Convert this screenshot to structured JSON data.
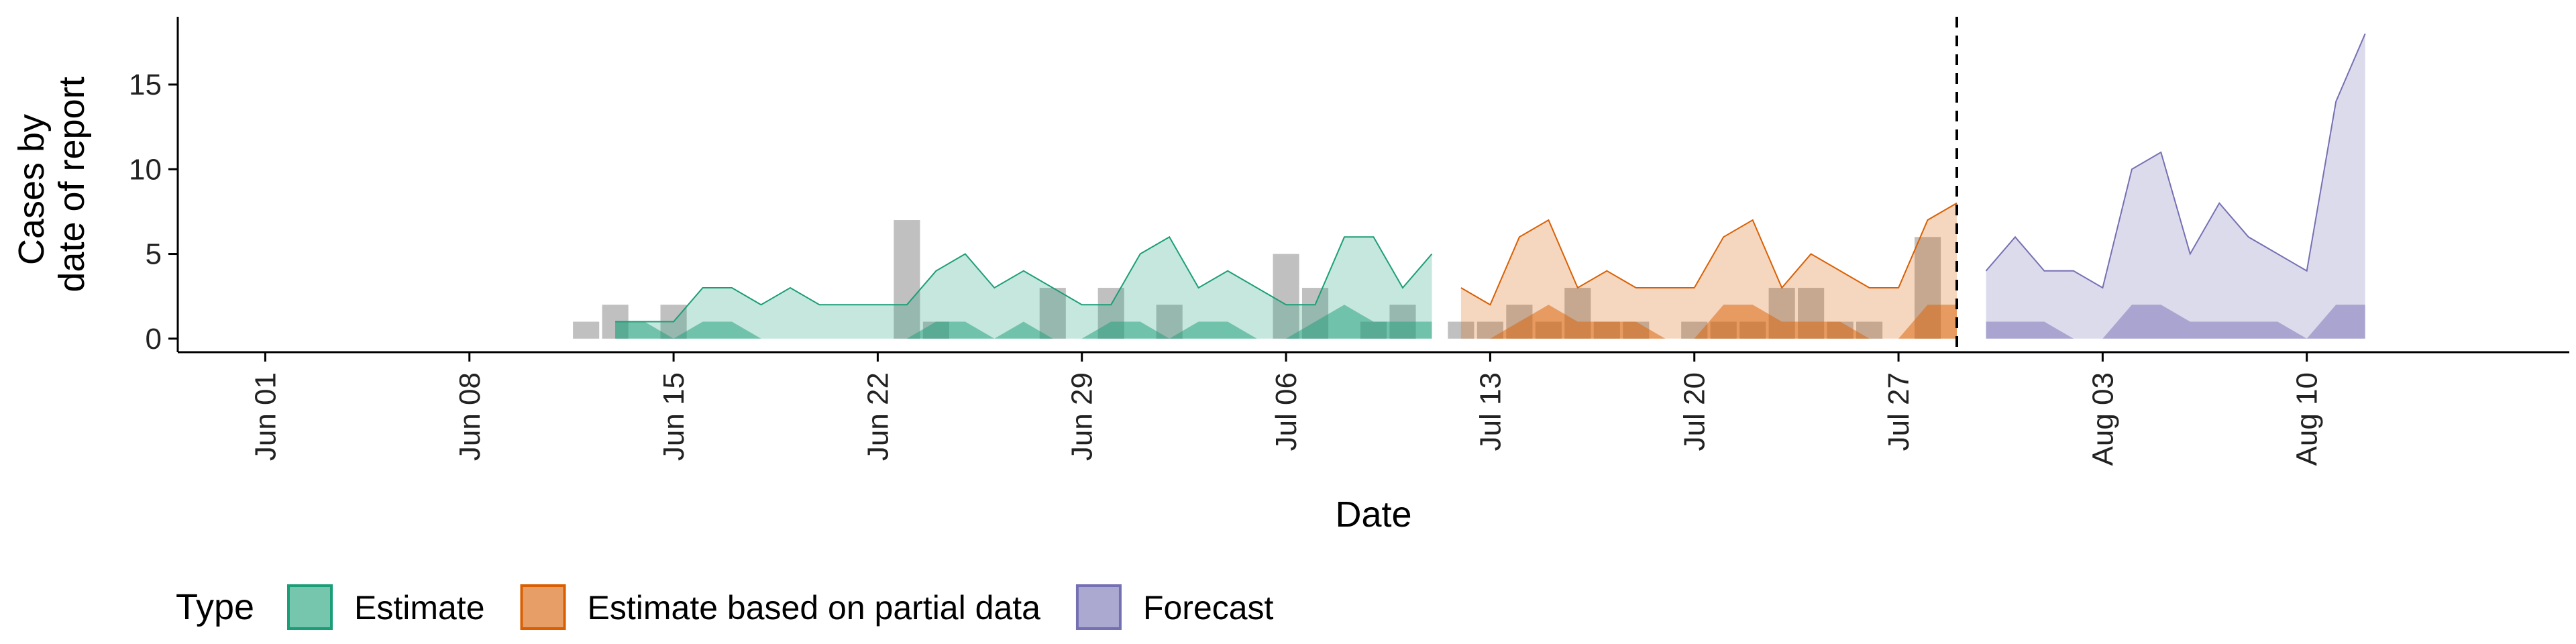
{
  "chart_data": {
    "type": "area",
    "xlabel": "Date",
    "ylabel_lines": [
      "Cases by",
      "date of report"
    ],
    "x_range": [
      "2020-05-29",
      "2020-08-19"
    ],
    "ylim": [
      -0.8,
      19
    ],
    "y_ticks": [
      0,
      5,
      10,
      15
    ],
    "x_ticks": [
      {
        "date": "2020-06-01",
        "label": "Jun 01"
      },
      {
        "date": "2020-06-08",
        "label": "Jun 08"
      },
      {
        "date": "2020-06-15",
        "label": "Jun 15"
      },
      {
        "date": "2020-06-22",
        "label": "Jun 22"
      },
      {
        "date": "2020-06-29",
        "label": "Jun 29"
      },
      {
        "date": "2020-07-06",
        "label": "Jul 06"
      },
      {
        "date": "2020-07-13",
        "label": "Jul 13"
      },
      {
        "date": "2020-07-20",
        "label": "Jul 20"
      },
      {
        "date": "2020-07-27",
        "label": "Jul 27"
      },
      {
        "date": "2020-08-03",
        "label": "Aug 03"
      },
      {
        "date": "2020-08-10",
        "label": "Aug 10"
      }
    ],
    "forecast_date": "2020-07-29",
    "grid": false,
    "legend_position": "bottom",
    "legend_title": "Type",
    "reported_cases": {
      "color": "#9e9e9e",
      "dates": [
        "2020-06-12",
        "2020-06-13",
        "2020-06-14",
        "2020-06-15",
        "2020-06-16",
        "2020-06-17",
        "2020-06-18",
        "2020-06-19",
        "2020-06-20",
        "2020-06-21",
        "2020-06-22",
        "2020-06-23",
        "2020-06-24",
        "2020-06-25",
        "2020-06-26",
        "2020-06-27",
        "2020-06-28",
        "2020-06-29",
        "2020-06-30",
        "2020-07-01",
        "2020-07-02",
        "2020-07-03",
        "2020-07-04",
        "2020-07-05",
        "2020-07-06",
        "2020-07-07",
        "2020-07-08",
        "2020-07-09",
        "2020-07-10",
        "2020-07-11",
        "2020-07-12",
        "2020-07-13",
        "2020-07-14",
        "2020-07-15",
        "2020-07-16",
        "2020-07-17",
        "2020-07-18",
        "2020-07-19",
        "2020-07-20",
        "2020-07-21",
        "2020-07-22",
        "2020-07-23",
        "2020-07-24",
        "2020-07-25",
        "2020-07-26",
        "2020-07-27",
        "2020-07-28"
      ],
      "values": [
        1,
        2,
        0,
        2,
        0,
        0,
        0,
        0,
        0,
        0,
        0,
        7,
        1,
        0,
        0,
        0,
        3,
        0,
        3,
        0,
        2,
        0,
        0,
        0,
        5,
        3,
        0,
        1,
        2,
        0,
        1,
        1,
        2,
        1,
        3,
        1,
        1,
        0,
        1,
        1,
        1,
        3,
        3,
        1,
        1,
        0,
        6
      ]
    },
    "series": [
      {
        "name": "Estimate",
        "color": "#1b9e77",
        "dates": [
          "2020-06-13",
          "2020-06-14",
          "2020-06-15",
          "2020-06-16",
          "2020-06-17",
          "2020-06-18",
          "2020-06-19",
          "2020-06-20",
          "2020-06-21",
          "2020-06-22",
          "2020-06-23",
          "2020-06-24",
          "2020-06-25",
          "2020-06-26",
          "2020-06-27",
          "2020-06-28",
          "2020-06-29",
          "2020-06-30",
          "2020-07-01",
          "2020-07-02",
          "2020-07-03",
          "2020-07-04",
          "2020-07-05",
          "2020-07-06",
          "2020-07-07",
          "2020-07-08",
          "2020-07-09",
          "2020-07-10",
          "2020-07-11"
        ],
        "upper_outer": [
          1,
          1,
          1,
          3,
          3,
          2,
          3,
          2,
          2,
          2,
          2,
          4,
          5,
          3,
          4,
          3,
          2,
          2,
          5,
          6,
          3,
          4,
          3,
          2,
          2,
          6,
          6,
          3,
          5
        ],
        "lower_outer": [
          0,
          0,
          0,
          0,
          0,
          0,
          0,
          0,
          0,
          0,
          0,
          0,
          0,
          0,
          0,
          0,
          0,
          0,
          0,
          0,
          0,
          0,
          0,
          0,
          0,
          0,
          0,
          0,
          0
        ],
        "upper_inner": [
          1,
          1,
          0,
          1,
          1,
          0,
          0,
          0,
          0,
          0,
          0,
          1,
          1,
          0,
          1,
          0,
          0,
          1,
          1,
          0,
          1,
          1,
          0,
          0,
          1,
          2,
          1,
          1,
          1
        ],
        "lower_inner": [
          0,
          0,
          0,
          0,
          0,
          0,
          0,
          0,
          0,
          0,
          0,
          0,
          0,
          0,
          0,
          0,
          0,
          0,
          0,
          0,
          0,
          0,
          0,
          0,
          0,
          0,
          0,
          0,
          0
        ]
      },
      {
        "name": "Estimate based on partial data",
        "color": "#d95f02",
        "dates": [
          "2020-07-12",
          "2020-07-13",
          "2020-07-14",
          "2020-07-15",
          "2020-07-16",
          "2020-07-17",
          "2020-07-18",
          "2020-07-19",
          "2020-07-20",
          "2020-07-21",
          "2020-07-22",
          "2020-07-23",
          "2020-07-24",
          "2020-07-25",
          "2020-07-26",
          "2020-07-27",
          "2020-07-28",
          "2020-07-29"
        ],
        "upper_outer": [
          3,
          2,
          6,
          7,
          3,
          4,
          3,
          3,
          3,
          6,
          7,
          3,
          5,
          4,
          3,
          3,
          7,
          8
        ],
        "lower_outer": [
          0,
          0,
          0,
          0,
          0,
          0,
          0,
          0,
          0,
          0,
          0,
          0,
          0,
          0,
          0,
          0,
          0,
          0
        ],
        "upper_inner": [
          0,
          0,
          1,
          2,
          1,
          1,
          1,
          0,
          0,
          2,
          2,
          1,
          1,
          1,
          0,
          0,
          2,
          2
        ],
        "lower_inner": [
          0,
          0,
          0,
          0,
          0,
          0,
          0,
          0,
          0,
          0,
          0,
          0,
          0,
          0,
          0,
          0,
          0,
          0
        ]
      },
      {
        "name": "Forecast",
        "color": "#7570b3",
        "dates": [
          "2020-07-30",
          "2020-07-31",
          "2020-08-01",
          "2020-08-02",
          "2020-08-03",
          "2020-08-04",
          "2020-08-05",
          "2020-08-06",
          "2020-08-07",
          "2020-08-08",
          "2020-08-09",
          "2020-08-10",
          "2020-08-11",
          "2020-08-12"
        ],
        "upper_outer": [
          4,
          6,
          4,
          4,
          3,
          10,
          11,
          5,
          8,
          6,
          5,
          4,
          14,
          18
        ],
        "lower_outer": [
          0,
          0,
          0,
          0,
          0,
          0,
          0,
          0,
          0,
          0,
          0,
          0,
          0,
          0
        ],
        "upper_inner": [
          1,
          1,
          1,
          0,
          0,
          2,
          2,
          1,
          1,
          1,
          1,
          0,
          2,
          2
        ],
        "lower_inner": [
          0,
          0,
          0,
          0,
          0,
          0,
          0,
          0,
          0,
          0,
          0,
          0,
          0,
          0
        ]
      }
    ]
  }
}
